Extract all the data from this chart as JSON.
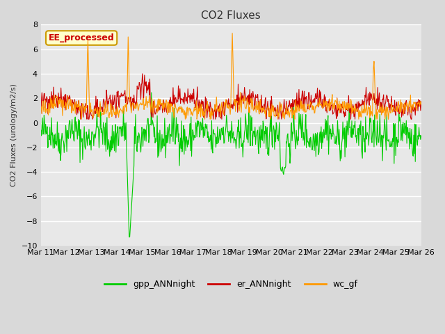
{
  "title": "CO2 Fluxes",
  "ylabel": "CO2 Fluxes (urology/m2/s)",
  "ylim": [
    -10,
    8
  ],
  "yticks": [
    -10,
    -8,
    -6,
    -4,
    -2,
    0,
    2,
    4,
    6,
    8
  ],
  "xtick_labels": [
    "Mar 11",
    "Mar 12",
    "Mar 13",
    "Mar 14",
    "Mar 15",
    "Mar 16",
    "Mar 17",
    "Mar 18",
    "Mar 19",
    "Mar 20",
    "Mar 21",
    "Mar 22",
    "Mar 23",
    "Mar 24",
    "Mar 25",
    "Mar 26"
  ],
  "n_days": 15,
  "n_points_per_day": 48,
  "colors": {
    "gpp": "#00cc00",
    "er": "#cc0000",
    "wc": "#ff9900"
  },
  "legend_labels": [
    "gpp_ANNnight",
    "er_ANNnight",
    "wc_gf"
  ],
  "annotation_text": "EE_processed",
  "annotation_bg": "#ffffcc",
  "annotation_border": "#cc9900",
  "annotation_text_color": "#cc0000",
  "bg_color": "#d9d9d9",
  "plot_bg_color": "#e8e8e8",
  "title_color": "#333333",
  "seed": 42
}
